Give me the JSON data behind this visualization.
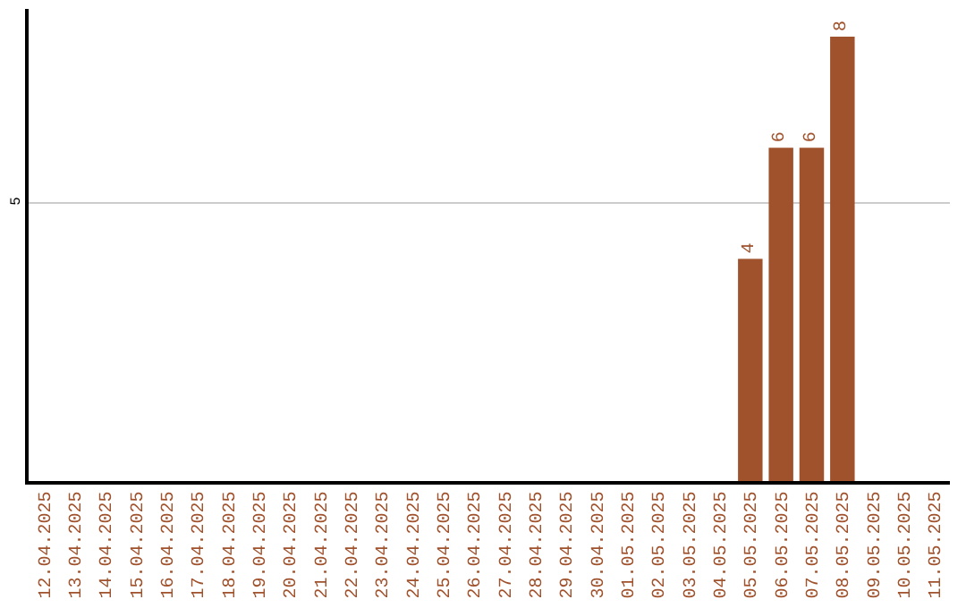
{
  "chart_data": {
    "type": "bar",
    "categories": [
      "12.04.2025",
      "13.04.2025",
      "14.04.2025",
      "15.04.2025",
      "16.04.2025",
      "17.04.2025",
      "18.04.2025",
      "19.04.2025",
      "20.04.2025",
      "21.04.2025",
      "22.04.2025",
      "23.04.2025",
      "24.04.2025",
      "25.04.2025",
      "26.04.2025",
      "27.04.2025",
      "28.04.2025",
      "29.04.2025",
      "30.04.2025",
      "01.05.2025",
      "02.05.2025",
      "03.05.2025",
      "04.05.2025",
      "05.05.2025",
      "06.05.2025",
      "07.05.2025",
      "08.05.2025",
      "09.05.2025",
      "10.05.2025",
      "11.05.2025"
    ],
    "values": [
      null,
      null,
      null,
      null,
      null,
      null,
      null,
      null,
      null,
      null,
      null,
      null,
      null,
      null,
      null,
      null,
      null,
      null,
      null,
      null,
      null,
      null,
      null,
      4,
      6,
      6,
      8,
      null,
      null,
      null
    ],
    "color": "#a0522d",
    "ylim": [
      0,
      8.5
    ],
    "yticks": [
      5
    ],
    "grid": "y",
    "data_labels": true,
    "legend": false
  }
}
